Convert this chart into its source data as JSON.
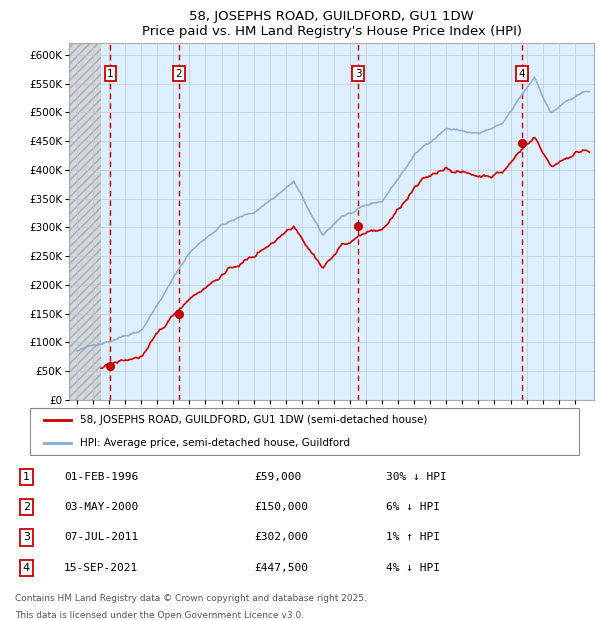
{
  "title": "58, JOSEPHS ROAD, GUILDFORD, GU1 1DW",
  "subtitle": "Price paid vs. HM Land Registry's House Price Index (HPI)",
  "legend_line1": "58, JOSEPHS ROAD, GUILDFORD, GU1 1DW (semi-detached house)",
  "legend_line2": "HPI: Average price, semi-detached house, Guildford",
  "footer1": "Contains HM Land Registry data © Crown copyright and database right 2025.",
  "footer2": "This data is licensed under the Open Government Licence v3.0.",
  "transactions": [
    {
      "num": 1,
      "date": "01-FEB-1996",
      "price": 59000,
      "x_year": 1996.08,
      "hpi_rel": "30% ↓ HPI"
    },
    {
      "num": 2,
      "date": "03-MAY-2000",
      "price": 150000,
      "x_year": 2000.33,
      "hpi_rel": "6% ↓ HPI"
    },
    {
      "num": 3,
      "date": "07-JUL-2011",
      "price": 302000,
      "x_year": 2011.5,
      "hpi_rel": "1% ↑ HPI"
    },
    {
      "num": 4,
      "date": "15-SEP-2021",
      "price": 447500,
      "x_year": 2021.7,
      "hpi_rel": "4% ↓ HPI"
    }
  ],
  "ylim": [
    0,
    620000
  ],
  "xlim": [
    1993.5,
    2026.2
  ],
  "yticks": [
    0,
    50000,
    100000,
    150000,
    200000,
    250000,
    300000,
    350000,
    400000,
    450000,
    500000,
    550000,
    600000
  ],
  "ytick_labels": [
    "£0",
    "£50K",
    "£100K",
    "£150K",
    "£200K",
    "£250K",
    "£300K",
    "£350K",
    "£400K",
    "£450K",
    "£500K",
    "£550K",
    "£600K"
  ],
  "hatch_end_year": 1995.5,
  "red_color": "#cc0000",
  "blue_color": "#88aacc",
  "bg_color": "#ddeeff",
  "grid_color": "#c0c8d8",
  "vline_color": "#cc0000"
}
